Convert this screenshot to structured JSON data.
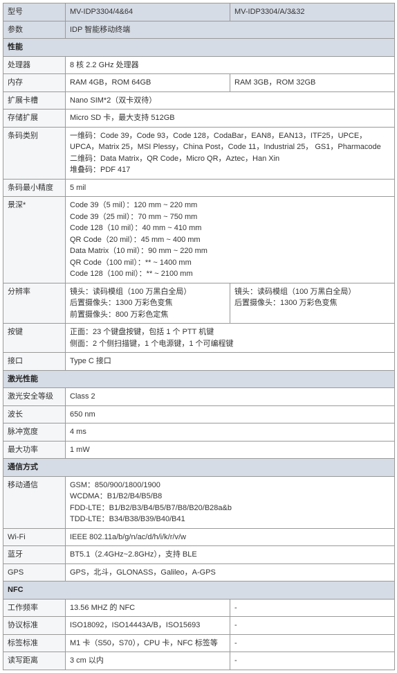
{
  "header": {
    "model_label": "型号",
    "param_label": "参数",
    "model1": "MV-IDP3304/4&64",
    "model2": "MV-IDP3304/A/3&32",
    "param_value": "IDP 智能移动终端"
  },
  "sections": {
    "perf": "性能",
    "laser": "激光性能",
    "comm": "通信方式",
    "nfc": "NFC"
  },
  "perf": {
    "processor": {
      "label": "处理器",
      "value": "8 核 2.2 GHz 处理器"
    },
    "memory": {
      "label": "内存",
      "v1": "RAM 4GB，ROM 64GB",
      "v2": "RAM 3GB，ROM 32GB"
    },
    "sim": {
      "label": "扩展卡槽",
      "value": "Nano SIM*2（双卡双待）"
    },
    "storage": {
      "label": "存储扩展",
      "value": "Micro SD 卡，最大支持 512GB"
    },
    "barcode": {
      "label": "条码类别",
      "l1": "一维码：Code 39，Code 93，Code 128，CodaBar，EAN8，EAN13，ITF25，UPCE，UPCA，Matrix 25，MSI Plessy，China Post，Code 11，Industrial 25， GS1，Pharmacode",
      "l2": "二维码：Data Matrix，QR Code，Micro QR，Aztec，Han Xin",
      "l3": "堆叠码：PDF 417"
    },
    "min_precision": {
      "label": "条码最小精度",
      "value": "5 mil"
    },
    "dof": {
      "label": "景深*",
      "l1": "Code 39（5 mil）：120 mm ~ 220 mm",
      "l2": "Code 39（25 mil）：70 mm ~ 750 mm",
      "l3": "Code 128（10 mil）：40 mm ~ 410 mm",
      "l4": "QR Code（20 mil）：45 mm ~ 400 mm",
      "l5": "Data Matrix（10 mil）：90 mm ~ 220 mm",
      "l6": "QR Code（100 mil）：** ~ 1400 mm",
      "l7": "Code 128（100 mil）：** ~ 2100 mm"
    },
    "resolution": {
      "label": "分辨率",
      "v1_l1": "镜头：读码模组（100 万黑白全局）",
      "v1_l2": "后置摄像头：1300 万彩色变焦",
      "v1_l3": "前置摄像头：800 万彩色定焦",
      "v2_l1": "镜头：读码模组（100 万黑白全局）",
      "v2_l2": "后置摄像头：1300 万彩色变焦"
    },
    "keys": {
      "label": "按键",
      "l1": "正面：23 个键盘按键，包括 1 个 PTT 机键",
      "l2": "侧面：2 个侧扫描键，1 个电源键，1 个可编程键"
    },
    "interface": {
      "label": "接口",
      "value": "Type C 接口"
    }
  },
  "laser": {
    "class": {
      "label": "激光安全等级",
      "value": "Class 2"
    },
    "wavelength": {
      "label": "波长",
      "value": "650 nm"
    },
    "pulse": {
      "label": "脉冲宽度",
      "value": "4 ms"
    },
    "power": {
      "label": "最大功率",
      "value": "1 mW"
    }
  },
  "comm": {
    "mobile": {
      "label": "移动通信",
      "l1": "GSM：850/900/1800/1900",
      "l2": "WCDMA：B1/B2/B4/B5/B8",
      "l3": "FDD-LTE：B1/B2/B3/B4/B5/B7/B8/B20/B28a&b",
      "l4": "TDD-LTE：B34/B38/B39/B40/B41"
    },
    "wifi": {
      "label": "Wi-Fi",
      "value": "IEEE 802.11a/b/g/n/ac/d/h/i/k/r/v/w"
    },
    "bt": {
      "label": "蓝牙",
      "value": "BT5.1（2.4GHz~2.8GHz），支持 BLE"
    },
    "gps": {
      "label": "GPS",
      "value": "GPS，北斗，GLONASS，Galileo，A-GPS"
    }
  },
  "nfc": {
    "freq": {
      "label": "工作频率",
      "v1": "13.56 MHZ 的 NFC",
      "v2": "-"
    },
    "protocol": {
      "label": "协议标准",
      "v1": "ISO18092，ISO14443A/B，ISO15693",
      "v2": "-"
    },
    "tag": {
      "label": "标签标准",
      "v1": "M1 卡（S50，S70），CPU 卡，NFC 标签等",
      "v2": "-"
    },
    "distance": {
      "label": "读写距离",
      "v1": "3 cm 以内",
      "v2": "-"
    }
  }
}
